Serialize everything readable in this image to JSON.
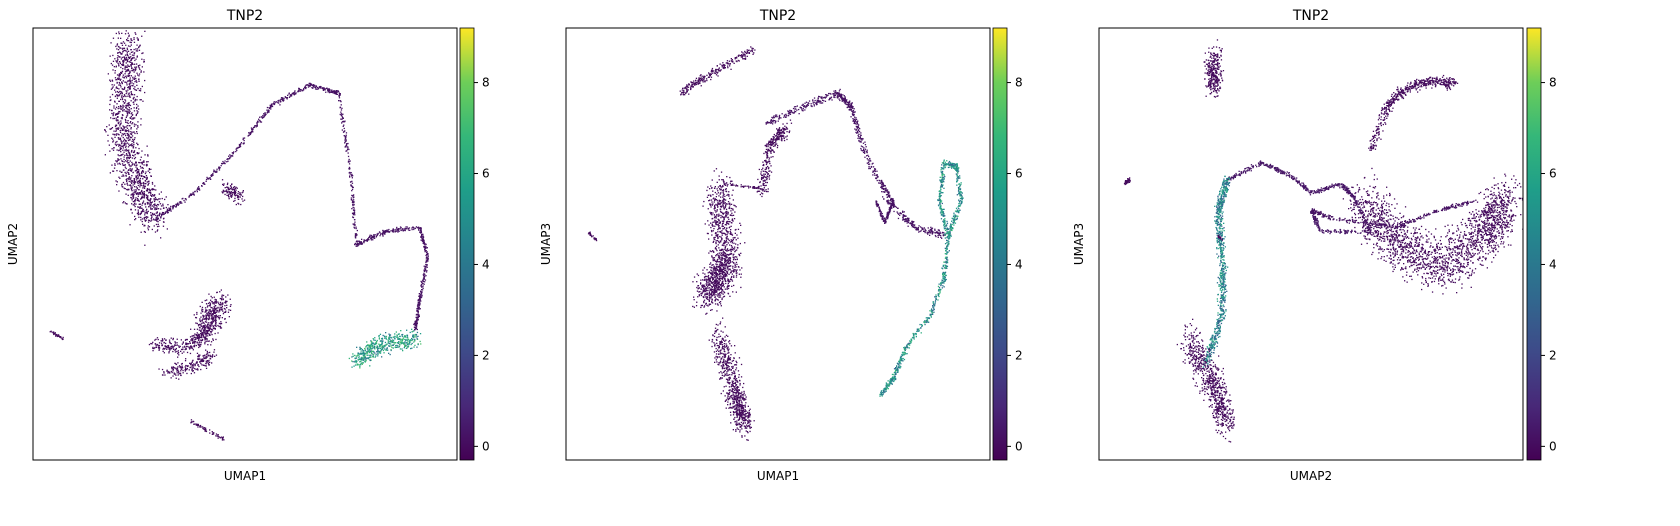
{
  "chart_data": [
    {
      "type": "scatter",
      "title": "TNP2",
      "xlabel": "UMAP1",
      "ylabel": "UMAP2",
      "x_ticks": [],
      "y_ticks": [],
      "colorbar": {
        "colormap": "viridis",
        "range": [
          -0.3,
          9.2
        ],
        "ticks": [
          0,
          2,
          4,
          6,
          8
        ],
        "tick_labels": [
          "0",
          "2",
          "4",
          "6",
          "8"
        ]
      },
      "clusters": [
        {
          "label": "",
          "curve": [
            [
              0.22,
              0.04
            ],
            [
              0.22,
              0.14
            ],
            [
              0.21,
              0.26
            ],
            [
              0.24,
              0.36
            ],
            [
              0.29,
              0.44
            ]
          ],
          "width": 0.055,
          "color_value": 0.0,
          "density": 1400
        },
        {
          "label": "",
          "curve": [
            [
              0.29,
              0.44
            ],
            [
              0.38,
              0.38
            ],
            [
              0.48,
              0.28
            ],
            [
              0.56,
              0.18
            ],
            [
              0.65,
              0.13
            ],
            [
              0.72,
              0.15
            ],
            [
              0.75,
              0.35
            ],
            [
              0.76,
              0.5
            ],
            [
              0.83,
              0.47
            ],
            [
              0.91,
              0.46
            ],
            [
              0.93,
              0.53
            ],
            [
              0.91,
              0.63
            ],
            [
              0.9,
              0.7
            ]
          ],
          "width": 0.006,
          "color_value": 0.2,
          "density": 1100
        },
        {
          "label": "",
          "curve": [
            [
              0.45,
              0.37
            ],
            [
              0.49,
              0.39
            ]
          ],
          "width": 0.02,
          "color_value": 0.0,
          "density": 120
        },
        {
          "label": "",
          "curve": [
            [
              0.76,
              0.77
            ],
            [
              0.82,
              0.73
            ],
            [
              0.9,
              0.72
            ]
          ],
          "width": 0.025,
          "color_value": 5.5,
          "density": 500
        },
        {
          "label": "",
          "curve": [
            [
              0.44,
              0.63
            ],
            [
              0.4,
              0.71
            ]
          ],
          "width": 0.04,
          "color_value": 0.0,
          "density": 400
        },
        {
          "label": "",
          "curve": [
            [
              0.28,
              0.73
            ],
            [
              0.36,
              0.74
            ],
            [
              0.41,
              0.7
            ]
          ],
          "width": 0.02,
          "color_value": 0.0,
          "density": 250
        },
        {
          "label": "",
          "curve": [
            [
              0.31,
              0.8
            ],
            [
              0.38,
              0.78
            ],
            [
              0.42,
              0.76
            ]
          ],
          "width": 0.02,
          "color_value": 0.0,
          "density": 200
        },
        {
          "label": "",
          "curve": [
            [
              0.37,
              0.91
            ],
            [
              0.45,
              0.95
            ]
          ],
          "width": 0.005,
          "color_value": 0.0,
          "density": 60
        },
        {
          "label": "",
          "curve": [
            [
              0.04,
              0.7
            ],
            [
              0.07,
              0.72
            ]
          ],
          "width": 0.004,
          "color_value": 0.0,
          "density": 30
        }
      ]
    },
    {
      "type": "scatter",
      "title": "TNP2",
      "xlabel": "UMAP1",
      "ylabel": "UMAP3",
      "x_ticks": [],
      "y_ticks": [],
      "colorbar": {
        "colormap": "viridis",
        "range": [
          -0.3,
          9.2
        ],
        "ticks": [
          0,
          2,
          4,
          6,
          8
        ],
        "tick_labels": [
          "0",
          "2",
          "4",
          "6",
          "8"
        ]
      },
      "clusters": [
        {
          "label": "",
          "curve": [
            [
              0.27,
              0.15
            ],
            [
              0.33,
              0.11
            ],
            [
              0.44,
              0.05
            ]
          ],
          "width": 0.012,
          "color_value": 0.0,
          "density": 250
        },
        {
          "label": "",
          "curve": [
            [
              0.47,
              0.22
            ],
            [
              0.56,
              0.18
            ],
            [
              0.64,
              0.15
            ],
            [
              0.67,
              0.18
            ],
            [
              0.7,
              0.28
            ],
            [
              0.76,
              0.4
            ],
            [
              0.82,
              0.46
            ],
            [
              0.9,
              0.48
            ]
          ],
          "width": 0.01,
          "color_value": 0.2,
          "density": 700
        },
        {
          "label": "",
          "curve": [
            [
              0.46,
              0.38
            ],
            [
              0.48,
              0.27
            ],
            [
              0.52,
              0.23
            ]
          ],
          "width": 0.02,
          "color_value": 0.0,
          "density": 300
        },
        {
          "label": "",
          "curve": [
            [
              0.74,
              0.35
            ],
            [
              0.77,
              0.4
            ],
            [
              0.75,
              0.45
            ],
            [
              0.73,
              0.4
            ]
          ],
          "width": 0.004,
          "color_value": 0.2,
          "density": 200
        },
        {
          "label": "",
          "curve": [
            [
              0.9,
              0.48
            ],
            [
              0.93,
              0.4
            ],
            [
              0.92,
              0.32
            ],
            [
              0.89,
              0.31
            ],
            [
              0.88,
              0.4
            ],
            [
              0.9,
              0.48
            ],
            [
              0.89,
              0.58
            ],
            [
              0.86,
              0.66
            ],
            [
              0.8,
              0.74
            ],
            [
              0.77,
              0.81
            ],
            [
              0.74,
              0.85
            ]
          ],
          "width": 0.008,
          "color_value": 5.0,
          "density": 900
        },
        {
          "label": "",
          "curve": [
            [
              0.36,
              0.37
            ],
            [
              0.38,
              0.55
            ],
            [
              0.33,
              0.62
            ]
          ],
          "width": 0.05,
          "color_value": 0.0,
          "density": 1200
        },
        {
          "label": "",
          "curve": [
            [
              0.36,
              0.71
            ],
            [
              0.4,
              0.85
            ],
            [
              0.42,
              0.92
            ]
          ],
          "width": 0.035,
          "color_value": 0.0,
          "density": 700
        },
        {
          "label": "",
          "curve": [
            [
              0.37,
              0.36
            ],
            [
              0.46,
              0.37
            ]
          ],
          "width": 0.004,
          "color_value": 0.0,
          "density": 50
        },
        {
          "label": "",
          "curve": [
            [
              0.05,
              0.47
            ],
            [
              0.07,
              0.49
            ]
          ],
          "width": 0.003,
          "color_value": 0.0,
          "density": 30
        }
      ]
    },
    {
      "type": "scatter",
      "title": "TNP2",
      "xlabel": "UMAP2",
      "ylabel": "UMAP3",
      "x_ticks": [],
      "y_ticks": [],
      "colorbar": {
        "colormap": "viridis",
        "range": [
          -0.3,
          9.2
        ],
        "ticks": [
          0,
          2,
          4,
          6,
          8
        ],
        "tick_labels": [
          "0",
          "2",
          "4",
          "6",
          "8"
        ]
      },
      "clusters": [
        {
          "label": "",
          "curve": [
            [
              0.27,
              0.06
            ],
            [
              0.27,
              0.14
            ]
          ],
          "width": 0.03,
          "color_value": 0.0,
          "density": 300
        },
        {
          "label": "",
          "curve": [
            [
              0.06,
              0.36
            ],
            [
              0.07,
              0.35
            ]
          ],
          "width": 0.006,
          "color_value": 0.0,
          "density": 40
        },
        {
          "label": "",
          "curve": [
            [
              0.3,
              0.35
            ],
            [
              0.38,
              0.31
            ],
            [
              0.45,
              0.34
            ],
            [
              0.5,
              0.38
            ],
            [
              0.57,
              0.36
            ],
            [
              0.6,
              0.39
            ],
            [
              0.64,
              0.47
            ],
            [
              0.52,
              0.47
            ],
            [
              0.5,
              0.42
            ]
          ],
          "width": 0.006,
          "color_value": 0.3,
          "density": 650
        },
        {
          "label": "",
          "curve": [
            [
              0.3,
              0.35
            ],
            [
              0.28,
              0.42
            ],
            [
              0.29,
              0.55
            ],
            [
              0.29,
              0.66
            ],
            [
              0.25,
              0.78
            ]
          ],
          "width": 0.014,
          "color_value": 4.5,
          "density": 800
        },
        {
          "label": "",
          "curve": [
            [
              0.21,
              0.72
            ],
            [
              0.27,
              0.82
            ],
            [
              0.3,
              0.92
            ]
          ],
          "width": 0.04,
          "color_value": 0.0,
          "density": 700
        },
        {
          "label": "",
          "curve": [
            [
              0.62,
              0.4
            ],
            [
              0.7,
              0.5
            ],
            [
              0.82,
              0.55
            ],
            [
              0.92,
              0.47
            ],
            [
              0.95,
              0.4
            ]
          ],
          "width": 0.07,
          "color_value": 0.0,
          "density": 2000
        },
        {
          "label": "",
          "curve": [
            [
              0.64,
              0.28
            ],
            [
              0.68,
              0.18
            ],
            [
              0.72,
              0.14
            ],
            [
              0.78,
              0.12
            ],
            [
              0.84,
              0.13
            ]
          ],
          "width": 0.015,
          "color_value": 0.0,
          "density": 500
        },
        {
          "label": "",
          "curve": [
            [
              0.5,
              0.42
            ],
            [
              0.55,
              0.44
            ],
            [
              0.7,
              0.46
            ],
            [
              0.8,
              0.42
            ],
            [
              0.88,
              0.4
            ]
          ],
          "width": 0.005,
          "color_value": 0.2,
          "density": 300
        },
        {
          "label": "",
          "curve": [
            [
              0.28,
              0.48
            ],
            [
              0.29,
              0.49
            ]
          ],
          "width": 0.003,
          "color_value": 0.0,
          "density": 20
        }
      ]
    }
  ]
}
